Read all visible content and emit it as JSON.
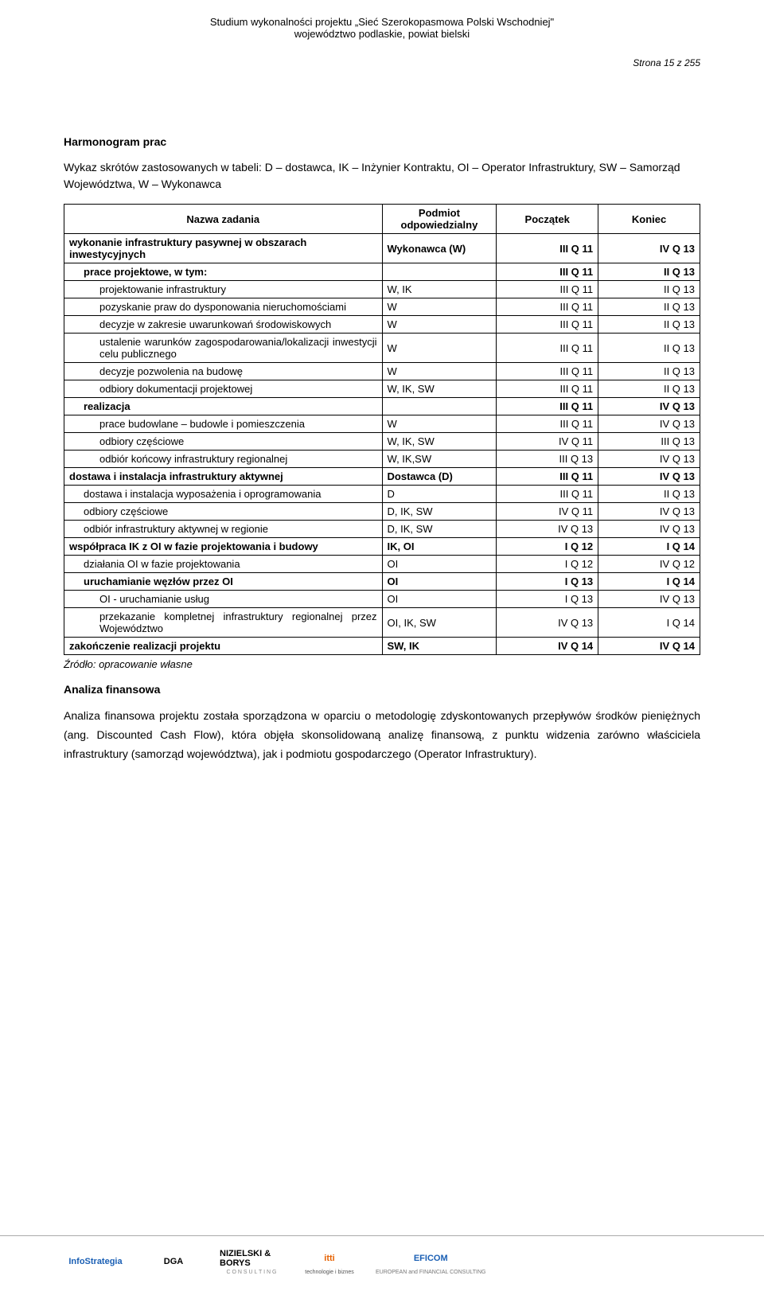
{
  "header": {
    "line1": "Studium wykonalności projektu „Sieć Szerokopasmowa Polski Wschodniej\"",
    "line2": "województwo podlaskie, powiat bielski",
    "page": "Strona 15 z 255"
  },
  "section_title": "Harmonogram prac",
  "intro_text": "Wykaz skrótów zastosowanych w tabeli: D – dostawca, IK – Inżynier Kontraktu, OI – Operator Infrastruktury, SW – Samorząd Województwa, W – Wykonawca",
  "table": {
    "head": {
      "c1": "Nazwa zadania",
      "c2": "Podmiot odpowiedzialny",
      "c3": "Początek",
      "c4": "Koniec"
    },
    "rows": [
      {
        "task": "wykonanie infrastruktury pasywnej w obszarach inwestycyjnych",
        "resp": "Wykonawca (W)",
        "start": "III Q 11",
        "end": "IV Q 13",
        "bold": true,
        "indent": 0
      },
      {
        "task": "prace projektowe, w tym:",
        "resp": "",
        "start": "III Q 11",
        "end": "II Q 13",
        "bold": true,
        "indent": 1
      },
      {
        "task": "projektowanie infrastruktury",
        "resp": "W, IK",
        "start": "III Q 11",
        "end": "II Q 13",
        "bold": false,
        "indent": 2
      },
      {
        "task": "pozyskanie praw do dysponowania nieruchomościami",
        "resp": "W",
        "start": "III Q 11",
        "end": "II Q 13",
        "bold": false,
        "indent": 2,
        "justify": true
      },
      {
        "task": "decyzje w zakresie uwarunkowań środowiskowych",
        "resp": "W",
        "start": "III Q 11",
        "end": "II Q 13",
        "bold": false,
        "indent": 2,
        "justify": true
      },
      {
        "task": "ustalenie warunków zagospodarowania/lokalizacji inwestycji celu publicznego",
        "resp": "W",
        "start": "III Q 11",
        "end": "II Q 13",
        "bold": false,
        "indent": 2,
        "justify": true
      },
      {
        "task": "decyzje pozwolenia na budowę",
        "resp": "W",
        "start": "III Q 11",
        "end": "II Q 13",
        "bold": false,
        "indent": 2
      },
      {
        "task": "odbiory dokumentacji projektowej",
        "resp": "W, IK, SW",
        "start": "III Q 11",
        "end": "II Q 13",
        "bold": false,
        "indent": 2
      },
      {
        "task": "realizacja",
        "resp": "",
        "start": "III Q 11",
        "end": "IV Q 13",
        "bold": true,
        "indent": 1
      },
      {
        "task": "prace budowlane – budowle i pomieszczenia",
        "resp": "W",
        "start": "III Q 11",
        "end": "IV Q 13",
        "bold": false,
        "indent": 2
      },
      {
        "task": "odbiory częściowe",
        "resp": "W, IK, SW",
        "start": "IV Q 11",
        "end": "III Q 13",
        "bold": false,
        "indent": 2
      },
      {
        "task": "odbiór końcowy infrastruktury regionalnej",
        "resp": "W, IK,SW",
        "start": "III Q 13",
        "end": "IV Q 13",
        "bold": false,
        "indent": 2
      },
      {
        "task": "dostawa i instalacja infrastruktury aktywnej",
        "resp": "Dostawca (D)",
        "start": "III Q 11",
        "end": "IV Q 13",
        "bold": true,
        "indent": 0
      },
      {
        "task": "dostawa i instalacja wyposażenia i oprogramowania",
        "resp": "D",
        "start": "III Q 11",
        "end": "II Q 13",
        "bold": false,
        "indent": 1,
        "justify": true
      },
      {
        "task": "odbiory częściowe",
        "resp": "D, IK, SW",
        "start": "IV Q 11",
        "end": "IV Q 13",
        "bold": false,
        "indent": 1
      },
      {
        "task": "odbiór infrastruktury aktywnej w regionie",
        "resp": "D, IK, SW",
        "start": "IV Q 13",
        "end": "IV Q 13",
        "bold": false,
        "indent": 1
      },
      {
        "task": "współpraca IK z OI w fazie projektowania i budowy",
        "resp": "IK, OI",
        "start": "I Q 12",
        "end": "I Q 14",
        "bold": true,
        "indent": 0
      },
      {
        "task": "działania OI w fazie projektowania",
        "resp": "OI",
        "start": "I Q 12",
        "end": "IV Q 12",
        "bold": false,
        "indent": 1
      },
      {
        "task": "uruchamianie węzłów przez OI",
        "resp": "OI",
        "start": "I Q 13",
        "end": "I Q 14",
        "bold": true,
        "indent": 1
      },
      {
        "task": "OI - uruchamianie usług",
        "resp": "OI",
        "start": "I Q 13",
        "end": "IV Q 13",
        "bold": false,
        "indent": 2
      },
      {
        "task": "przekazanie kompletnej infrastruktury regionalnej przez Województwo",
        "resp": "OI, IK, SW",
        "start": "IV Q 13",
        "end": "I Q 14",
        "bold": false,
        "indent": 2,
        "justify": true
      },
      {
        "task": "zakończenie realizacji projektu",
        "resp": "SW, IK",
        "start": "IV Q 14",
        "end": "IV Q 14",
        "bold": true,
        "indent": 0
      }
    ]
  },
  "source": "Źródło: opracowanie własne",
  "subsection": "Analiza finansowa",
  "body": "Analiza finansowa projektu została sporządzona w oparciu o metodologię zdyskontowanych przepływów środków pieniężnych (ang. Discounted Cash Flow), która objęła skonsolidowaną analizę finansową, z punktu widzenia zarówno właściciela infrastruktury (samorząd województwa), jak i podmiotu gospodarczego (Operator Infrastruktury).",
  "logos": [
    {
      "name": "InfoStrategia",
      "color1": "#1a5fb4",
      "color2": "#c01c28"
    },
    {
      "name": "DGA",
      "color1": "#000000",
      "color2": "#c01c28"
    },
    {
      "name": "NIZIELSKI & BORYS",
      "sub": "C O N S U L T I N G",
      "color1": "#000000",
      "color2": "#888"
    },
    {
      "name": "itti",
      "sub": "technologie i biznes",
      "color1": "#e66100",
      "color2": "#555"
    },
    {
      "name": "EFICOM",
      "sub": "EUROPEAN and FINANCIAL CONSULTING",
      "color1": "#1a5fb4",
      "color2": "#777"
    }
  ]
}
